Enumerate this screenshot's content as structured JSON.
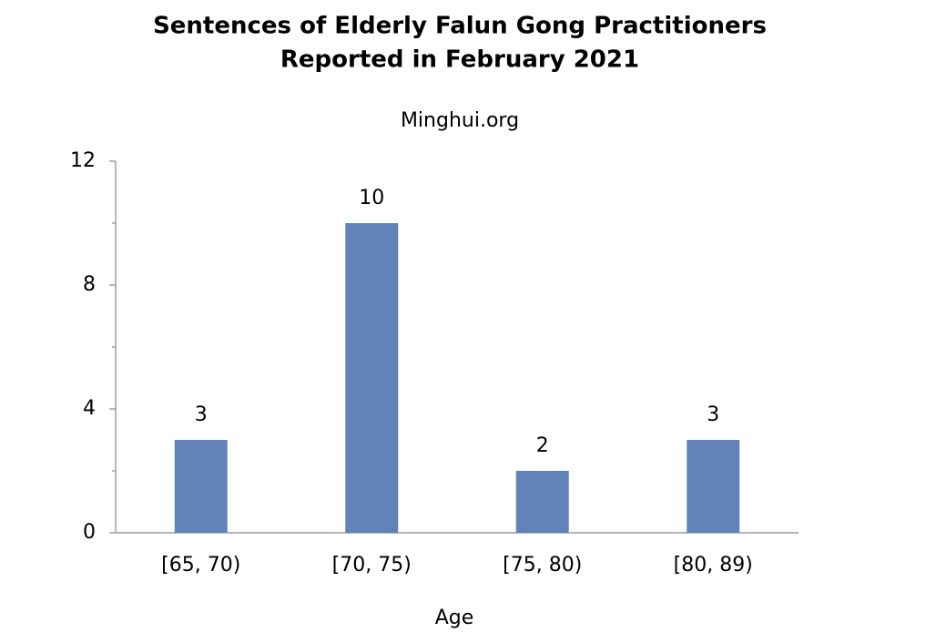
{
  "chart_data": {
    "type": "bar",
    "title": [
      "Sentences of Elderly Falun Gong Practitioners",
      "Reported in February 2021"
    ],
    "subtitle": "Minghui.org",
    "x_label": "Age",
    "categories": [
      "[65, 70)",
      "[70, 75)",
      "[75, 80)",
      "[80, 89)"
    ],
    "values": [
      3,
      10,
      2,
      3
    ],
    "color": "#6283b8",
    "ylim": [
      0,
      12
    ],
    "yticks": [
      0,
      4,
      8,
      12
    ],
    "minor_yticks": [
      2,
      6,
      10
    ],
    "grid": false
  }
}
